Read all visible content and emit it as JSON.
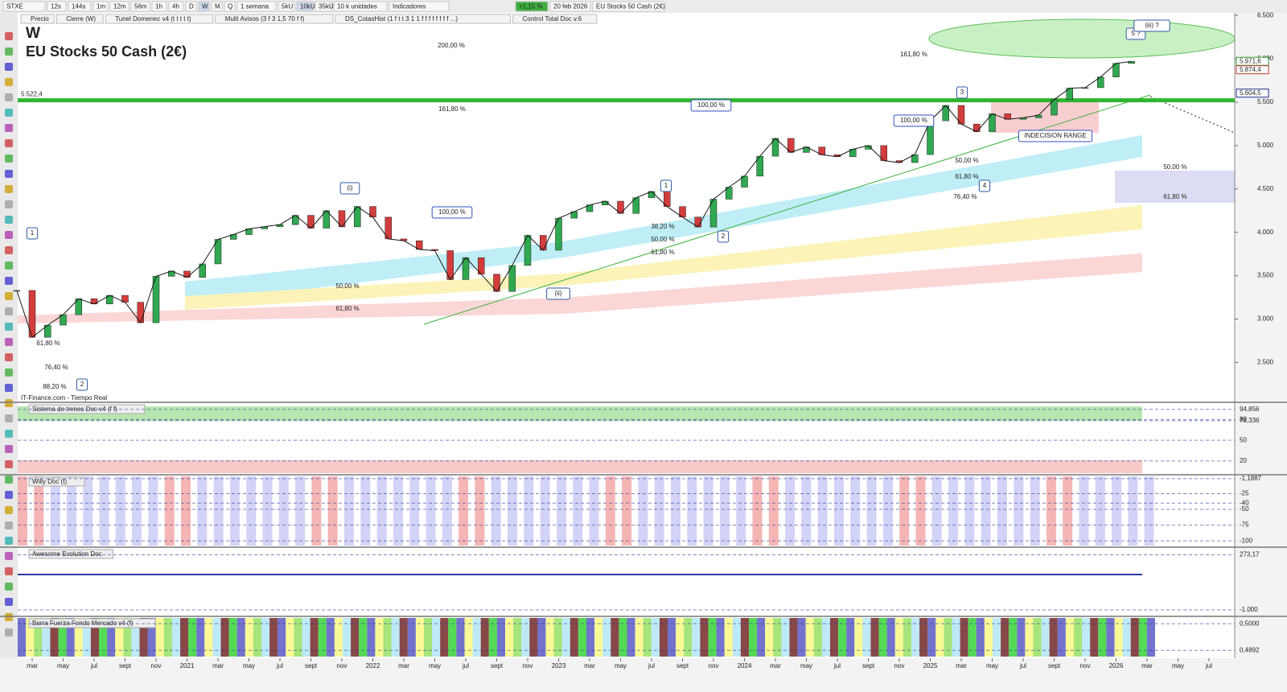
{
  "toolbar": {
    "symbol": "STXE",
    "timeframes": [
      "12s",
      "144s",
      "1m",
      "12m",
      "56m",
      "1h",
      "4h",
      "D",
      "W",
      "M",
      "Q"
    ],
    "period": "1 semana",
    "units": [
      "5kU",
      "10kU",
      "35kU"
    ],
    "units_label": "10 k unidades",
    "indicators_button": "Indicadores",
    "change": "+1,15 %",
    "date": "20 feb 2026",
    "instrument": "EU Stocks 50 Cash (2€)"
  },
  "indicator_bar": [
    "Precio",
    "Cierre (W)",
    "Tunel Domenec v4 (t t t t t)",
    "Multi Avisos (3 f 3 1,5 70 f f)",
    "DS_CotasHist (1 f t t 3 1 1 f f f f f f f f ...)",
    "Control Total Doc v.6"
  ],
  "chart_data": {
    "type": "line",
    "title": "W",
    "subtitle": "EU Stocks 50 Cash (2€)",
    "source": "IT-Finance.com - Tiempo Real",
    "values": [
      3330,
      2790,
      2930,
      3050,
      3234,
      3174,
      3273,
      3194,
      2958,
      3493,
      3553,
      3481,
      3636,
      3919,
      3974,
      4040,
      4064,
      4089,
      4196,
      4048,
      4250,
      4063,
      4298,
      4175,
      3924,
      3903,
      3803,
      3789,
      3455,
      3708,
      3517,
      3318,
      3618,
      3965,
      3794,
      4163,
      4238,
      4315,
      4359,
      4218,
      4399,
      4471,
      4297,
      4175,
      4061,
      4382,
      4521,
      4648,
      4878,
      5083,
      4921,
      4984,
      4894,
      4872,
      4958,
      5000,
      4827,
      4804,
      4896,
      5286,
      5463,
      5248,
      5160,
      5367,
      5303,
      5320,
      5351,
      5530,
      5662,
      5668,
      5791,
      5948,
      5970
    ],
    "color": "#1a1a1a",
    "ylim": [
      2040,
      6530
    ],
    "yticks": [
      {
        "value": 6500,
        "label": "6.500"
      },
      {
        "value": 6000,
        "label": "6.000"
      },
      {
        "value": 5500,
        "label": "5.500"
      },
      {
        "value": 5000,
        "label": "5.000"
      },
      {
        "value": 4500,
        "label": "4.500"
      },
      {
        "value": 4000,
        "label": "4.000"
      },
      {
        "value": 3500,
        "label": "3.500"
      },
      {
        "value": 3000,
        "label": "3.000"
      },
      {
        "value": 2500,
        "label": "2.500"
      }
    ],
    "xticks": [
      "mar",
      "may",
      "jul",
      "sept",
      "nov",
      "2021",
      "mar",
      "may",
      "jul",
      "sept",
      "nov",
      "2022",
      "mar",
      "may",
      "jul",
      "sept",
      "nov",
      "2023",
      "mar",
      "may",
      "jul",
      "sept",
      "nov",
      "2024",
      "mar",
      "may",
      "jul",
      "sept",
      "nov",
      "2025",
      "mar",
      "may",
      "jul",
      "sept",
      "nov",
      "2026",
      "mar",
      "may",
      "jul"
    ],
    "level": {
      "value": 5522.4,
      "label": "5.522,4"
    },
    "price_tags": [
      {
        "value": 5971.6,
        "label": "5.971,6",
        "color": "#2e9c2e"
      },
      {
        "value": 5874.4,
        "label": "5.874,4",
        "color": "#c0392b"
      },
      {
        "value": 5604.5,
        "label": "5.604,5",
        "color": "#1a2a8c"
      }
    ],
    "annotations": [
      "1",
      "2",
      "(i)",
      "(ii)",
      "1",
      "2",
      "3",
      "4",
      "5 ?",
      "(iii) ?",
      "200,00 %",
      "161,80 %",
      "161,80 %",
      "100,00 %",
      "100,00 %",
      "100,00 %",
      "61,80 %",
      "50,00 %",
      "38,20 %",
      "50,00 %",
      "61,80 %",
      "50,00 %",
      "61,80 %",
      "76,40 %",
      "50,00 %",
      "61,80 %",
      "61,80 %",
      "76,40 %",
      "88,20 %",
      "INDECISION RANGE"
    ]
  },
  "panels": [
    {
      "title": "Sistema de trenes Doc v4 (f f)",
      "ylim": [
        0,
        105
      ],
      "ticks": [
        {
          "value": 94.856,
          "label": "94,856"
        },
        {
          "value": 78.336,
          "label": "78,336"
        },
        80,
        50,
        20
      ]
    },
    {
      "title": "Willy Doc (t)",
      "ylim": [
        -110,
        5
      ],
      "ticks": [
        {
          "value": -1.1887,
          "label": "-1,1887"
        },
        -25,
        -40,
        -50,
        -75,
        -100
      ]
    },
    {
      "title": "Awesome Evolution Doc",
      "ylim": [
        -1150,
        450
      ],
      "ticks": [
        {
          "value": 273.17,
          "label": "273,17"
        },
        {
          "value": -1000,
          "label": "-1.000"
        }
      ]
    },
    {
      "title": "Barra Fuerza Fondo Mercado v4 (f)",
      "ylim": [
        0.486,
        0.503
      ],
      "ticks": [
        {
          "value": 0.5,
          "label": "0,5000"
        },
        {
          "value": 0.4892,
          "label": "0,4892"
        }
      ]
    }
  ]
}
